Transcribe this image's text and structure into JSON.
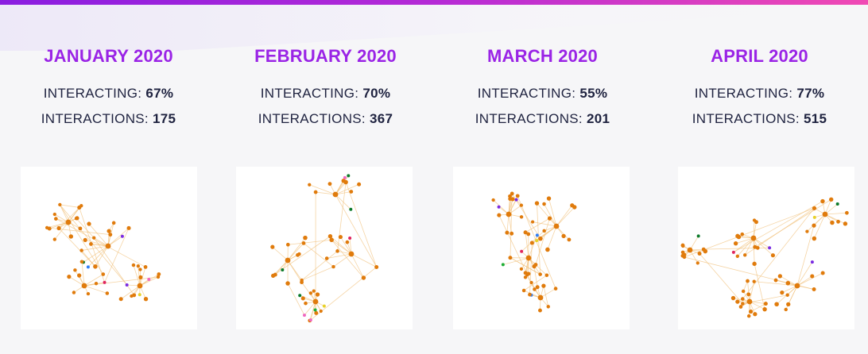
{
  "months": [
    {
      "title": "JANUARY 2020",
      "interacting_label": "INTERACTING:",
      "interacting_value": "67%",
      "interactions_label": "INTERACTIONS:",
      "interactions_value": "175"
    },
    {
      "title": "FEBRUARY 2020",
      "interacting_label": "INTERACTING:",
      "interacting_value": "70%",
      "interactions_label": "INTERACTIONS:",
      "interactions_value": "367"
    },
    {
      "title": "MARCH 2020",
      "interacting_label": "INTERACTING:",
      "interacting_value": "55%",
      "interactions_label": "INTERACTIONS:",
      "interactions_value": "201"
    },
    {
      "title": "APRIL 2020",
      "interacting_label": "INTERACTING:",
      "interacting_value": "77%",
      "interactions_label": "INTERACTIONS:",
      "interactions_value": "515"
    }
  ],
  "colors": {
    "title": "#9a24e6",
    "text": "#1f2340",
    "node": "#e07b0c",
    "edge": "#f1c27e",
    "node_accents": [
      "#2f7ef7",
      "#7a2be2",
      "#e0245e",
      "#1fae35",
      "#f067c0",
      "#0d7a2a",
      "#e8d12a"
    ]
  }
}
